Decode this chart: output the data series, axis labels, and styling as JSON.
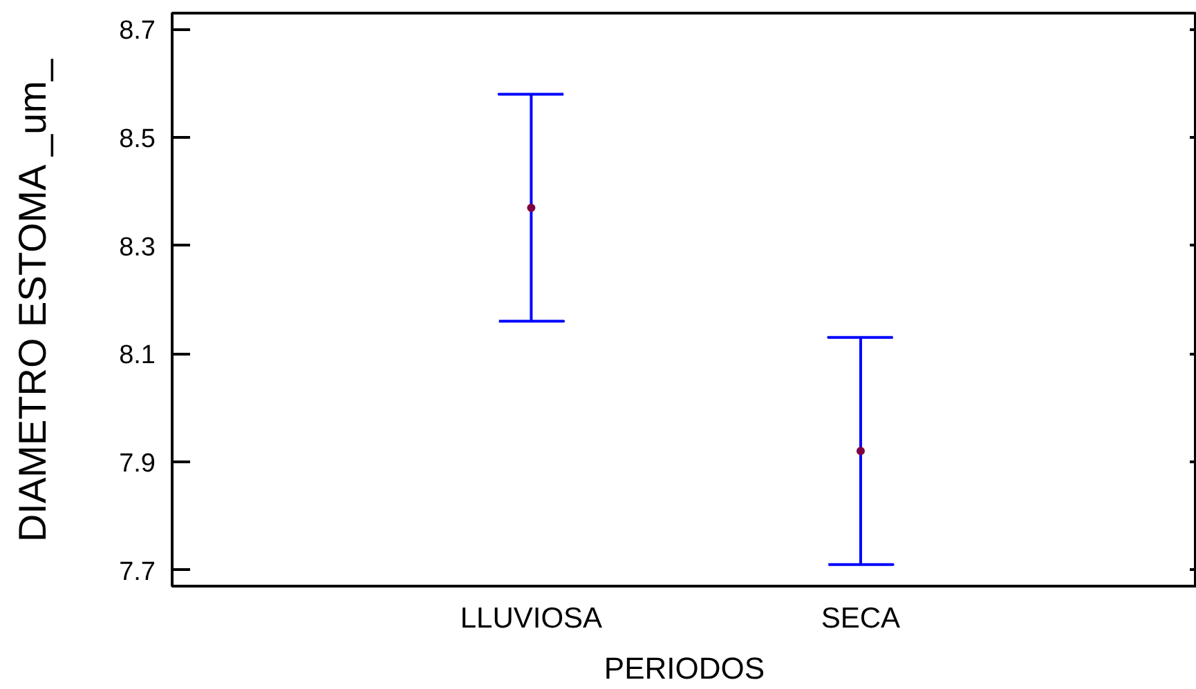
{
  "chart_data": {
    "type": "scatter",
    "xlabel": "PERIODOS",
    "ylabel": "DIAMETRO ESTOMA _um_",
    "categories": [
      "LLUVIOSA",
      "SECA"
    ],
    "series": [
      {
        "color": "#800040",
        "values": [
          8.37,
          7.92
        ],
        "errors": [
          0.21,
          0.21
        ]
      }
    ],
    "color": "#0000ff",
    "marker": "circle",
    "ylim": [
      7.67,
      8.73
    ],
    "yticks": [
      7.7,
      7.9,
      8.1,
      8.3,
      8.5,
      8.7
    ]
  }
}
